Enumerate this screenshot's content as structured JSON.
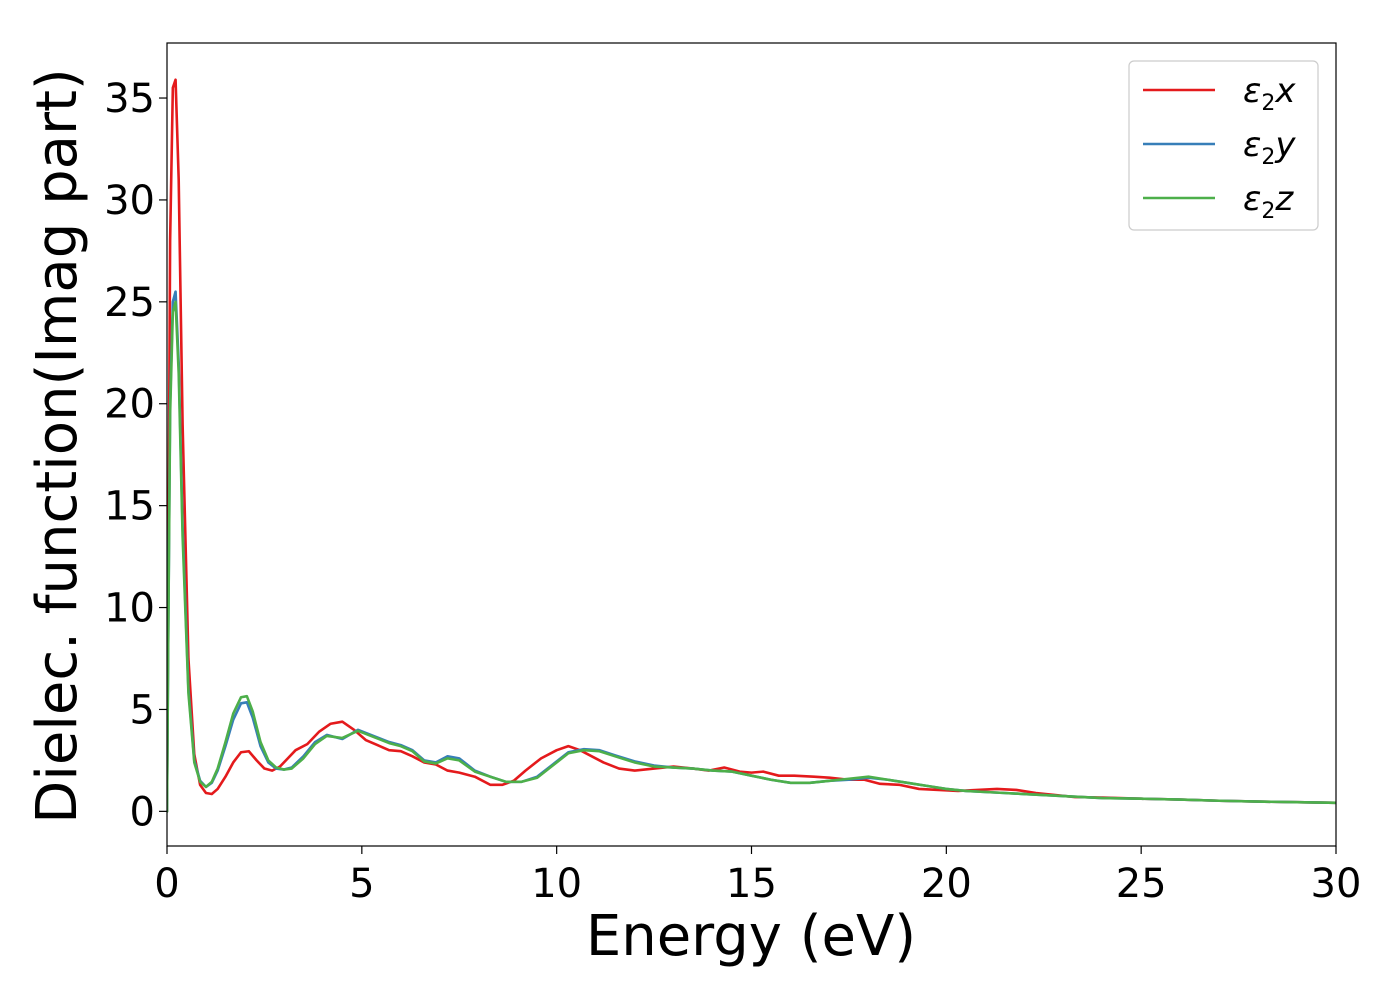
{
  "chart_data": {
    "type": "line",
    "xlabel": "Energy (eV)",
    "ylabel": "Dielec. function(Imag part)",
    "xlim": [
      0,
      30
    ],
    "ylim": [
      -1.7,
      37.7
    ],
    "xticks": [
      0,
      5,
      10,
      15,
      20,
      25,
      30
    ],
    "yticks": [
      0,
      5,
      10,
      15,
      20,
      25,
      30,
      35
    ],
    "grid": false,
    "legend_position": "top-right",
    "series": [
      {
        "name": "ε2x",
        "legend": {
          "base": "ε",
          "sub": "2",
          "suffix": "x"
        },
        "color": "#e41a1c",
        "x": [
          0,
          0.03,
          0.08,
          0.15,
          0.22,
          0.3,
          0.4,
          0.55,
          0.7,
          0.85,
          1.0,
          1.15,
          1.3,
          1.5,
          1.7,
          1.9,
          2.1,
          2.3,
          2.5,
          2.7,
          2.9,
          3.1,
          3.3,
          3.6,
          3.9,
          4.2,
          4.5,
          4.8,
          5.1,
          5.4,
          5.7,
          6.0,
          6.3,
          6.6,
          6.9,
          7.2,
          7.5,
          7.9,
          8.3,
          8.6,
          8.9,
          9.2,
          9.6,
          10.0,
          10.3,
          10.6,
          10.9,
          11.2,
          11.6,
          12.0,
          12.5,
          13.0,
          13.5,
          13.9,
          14.3,
          14.7,
          15.0,
          15.3,
          15.7,
          16.1,
          16.6,
          17.0,
          17.5,
          17.9,
          18.3,
          18.8,
          19.3,
          19.8,
          20.3,
          20.8,
          21.3,
          21.8,
          22.3,
          22.8,
          23.3,
          24.0,
          25.0,
          26.0,
          27.0,
          28.0,
          29.0,
          30.0
        ],
        "y": [
          0.0,
          10.0,
          28.0,
          35.5,
          35.9,
          31.0,
          19.0,
          7.5,
          2.8,
          1.3,
          0.9,
          0.85,
          1.1,
          1.7,
          2.4,
          2.9,
          2.95,
          2.5,
          2.1,
          2.0,
          2.2,
          2.6,
          3.0,
          3.3,
          3.9,
          4.3,
          4.4,
          4.0,
          3.5,
          3.25,
          3.0,
          2.95,
          2.7,
          2.4,
          2.3,
          2.0,
          1.9,
          1.7,
          1.3,
          1.3,
          1.5,
          2.0,
          2.6,
          3.0,
          3.2,
          3.0,
          2.7,
          2.4,
          2.1,
          2.0,
          2.1,
          2.2,
          2.1,
          2.0,
          2.15,
          1.95,
          1.9,
          1.95,
          1.75,
          1.75,
          1.7,
          1.65,
          1.55,
          1.55,
          1.35,
          1.3,
          1.1,
          1.05,
          1.0,
          1.05,
          1.1,
          1.05,
          0.9,
          0.8,
          0.7,
          0.68,
          0.62,
          0.58,
          0.52,
          0.48,
          0.45,
          0.42
        ]
      },
      {
        "name": "ε2y",
        "legend": {
          "base": "ε",
          "sub": "2",
          "suffix": "y"
        },
        "color": "#377eb8",
        "x": [
          0,
          0.03,
          0.08,
          0.15,
          0.22,
          0.3,
          0.4,
          0.55,
          0.7,
          0.85,
          1.0,
          1.15,
          1.3,
          1.5,
          1.7,
          1.9,
          2.05,
          2.2,
          2.4,
          2.6,
          2.8,
          3.0,
          3.2,
          3.5,
          3.8,
          4.1,
          4.5,
          4.9,
          5.3,
          5.7,
          6.0,
          6.3,
          6.6,
          6.9,
          7.2,
          7.5,
          7.9,
          8.3,
          8.7,
          9.1,
          9.5,
          9.9,
          10.3,
          10.7,
          11.1,
          11.5,
          12.0,
          12.5,
          13.0,
          13.5,
          14.0,
          14.5,
          15.0,
          15.5,
          16.0,
          16.5,
          17.0,
          17.5,
          18.0,
          18.5,
          19.0,
          19.5,
          20.0,
          20.5,
          21.0,
          21.5,
          22.0,
          22.5,
          23.0,
          23.5,
          24.0,
          25.0,
          26.0,
          27.0,
          28.0,
          29.0,
          30.0
        ],
        "y": [
          0.0,
          8.0,
          20.0,
          25.0,
          25.5,
          22.0,
          14.0,
          6.0,
          2.5,
          1.5,
          1.2,
          1.4,
          2.0,
          3.2,
          4.5,
          5.3,
          5.35,
          4.6,
          3.2,
          2.4,
          2.1,
          2.05,
          2.15,
          2.7,
          3.4,
          3.75,
          3.55,
          4.0,
          3.7,
          3.4,
          3.25,
          3.0,
          2.5,
          2.4,
          2.7,
          2.6,
          2.0,
          1.7,
          1.45,
          1.45,
          1.7,
          2.3,
          2.9,
          3.05,
          3.0,
          2.75,
          2.45,
          2.25,
          2.15,
          2.1,
          2.0,
          1.95,
          1.75,
          1.55,
          1.4,
          1.4,
          1.5,
          1.55,
          1.65,
          1.55,
          1.4,
          1.25,
          1.1,
          1.0,
          0.95,
          0.9,
          0.85,
          0.8,
          0.75,
          0.7,
          0.65,
          0.62,
          0.58,
          0.52,
          0.48,
          0.45,
          0.42
        ]
      },
      {
        "name": "ε2z",
        "legend": {
          "base": "ε",
          "sub": "2",
          "suffix": "z"
        },
        "color": "#4daf4a",
        "x": [
          0,
          0.03,
          0.08,
          0.15,
          0.22,
          0.3,
          0.4,
          0.55,
          0.7,
          0.85,
          1.0,
          1.15,
          1.3,
          1.5,
          1.7,
          1.9,
          2.05,
          2.2,
          2.4,
          2.6,
          2.8,
          3.0,
          3.2,
          3.5,
          3.8,
          4.1,
          4.5,
          4.9,
          5.3,
          5.7,
          6.0,
          6.3,
          6.6,
          6.9,
          7.2,
          7.5,
          7.9,
          8.3,
          8.7,
          9.1,
          9.5,
          9.9,
          10.3,
          10.7,
          11.1,
          11.5,
          12.0,
          12.5,
          13.0,
          13.5,
          14.0,
          14.5,
          15.0,
          15.5,
          16.0,
          16.5,
          17.0,
          17.5,
          18.0,
          18.5,
          19.0,
          19.5,
          20.0,
          20.5,
          21.0,
          21.5,
          22.0,
          22.5,
          23.0,
          23.5,
          24.0,
          25.0,
          26.0,
          27.0,
          28.0,
          29.0,
          30.0
        ],
        "y": [
          0.0,
          8.0,
          19.5,
          24.5,
          25.0,
          21.5,
          13.5,
          5.8,
          2.4,
          1.45,
          1.2,
          1.45,
          2.1,
          3.4,
          4.8,
          5.6,
          5.65,
          4.9,
          3.4,
          2.5,
          2.15,
          2.05,
          2.1,
          2.6,
          3.3,
          3.7,
          3.6,
          3.95,
          3.65,
          3.35,
          3.2,
          2.95,
          2.45,
          2.35,
          2.6,
          2.5,
          1.95,
          1.7,
          1.45,
          1.45,
          1.65,
          2.25,
          2.85,
          3.0,
          2.95,
          2.7,
          2.4,
          2.2,
          2.15,
          2.1,
          2.0,
          1.95,
          1.75,
          1.55,
          1.4,
          1.4,
          1.5,
          1.6,
          1.7,
          1.55,
          1.4,
          1.25,
          1.1,
          1.0,
          0.95,
          0.9,
          0.85,
          0.8,
          0.75,
          0.7,
          0.65,
          0.62,
          0.58,
          0.52,
          0.48,
          0.45,
          0.42
        ]
      }
    ]
  }
}
